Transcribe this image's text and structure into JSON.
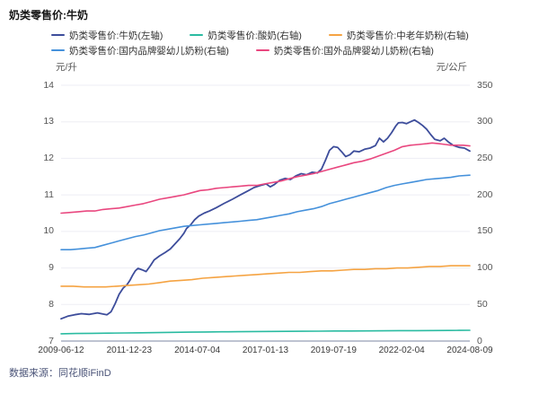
{
  "window": {
    "title": "奶类零售价:牛奶"
  },
  "footer": {
    "source": "数据来源：同花顺iFinD"
  },
  "colors": {
    "background": "#ffffff",
    "gridline": "#ededf4",
    "axis_line": "#a9afc2",
    "title_text": "#151515",
    "legend_text": "#333333",
    "tick_text": "#555555",
    "xtick_text": "#3a3a3a",
    "footer_text": "#4b5478"
  },
  "chart_data": {
    "type": "line",
    "title": "奶类零售价:牛奶",
    "legend_position": "top",
    "grid": true,
    "x_domain_years": [
      2009.45,
      2024.6
    ],
    "x_tick_labels": [
      "2009-06-12",
      "2011-12-23",
      "2014-07-04",
      "2017-01-13",
      "2019-07-19",
      "2022-02-04",
      "2024-08-09"
    ],
    "axes": {
      "left": {
        "label": "元/升",
        "min": 7,
        "max": 14,
        "ticks": [
          14,
          13,
          12,
          11,
          10,
          9,
          8,
          7
        ]
      },
      "right": {
        "label": "元/公斤",
        "min": 0,
        "max": 350,
        "ticks": [
          350,
          300,
          250,
          200,
          150,
          100,
          50,
          0
        ]
      }
    },
    "legend_rows": [
      [
        0,
        1,
        2
      ],
      [
        3,
        4
      ]
    ],
    "series": [
      {
        "name": "奶类零售价:牛奶(左轴)",
        "axis": "left",
        "color": "#3d4d9b",
        "unit": "元/升",
        "points": [
          [
            2009.45,
            7.61
          ],
          [
            2009.7,
            7.68
          ],
          [
            2009.95,
            7.72
          ],
          [
            2010.2,
            7.75
          ],
          [
            2010.5,
            7.73
          ],
          [
            2010.8,
            7.77
          ],
          [
            2011.0,
            7.74
          ],
          [
            2011.15,
            7.72
          ],
          [
            2011.3,
            7.8
          ],
          [
            2011.45,
            8.02
          ],
          [
            2011.6,
            8.28
          ],
          [
            2011.75,
            8.45
          ],
          [
            2011.9,
            8.55
          ],
          [
            2012.0,
            8.66
          ],
          [
            2012.1,
            8.8
          ],
          [
            2012.2,
            8.92
          ],
          [
            2012.3,
            8.99
          ],
          [
            2012.45,
            8.95
          ],
          [
            2012.6,
            8.9
          ],
          [
            2012.75,
            9.05
          ],
          [
            2012.9,
            9.22
          ],
          [
            2013.1,
            9.33
          ],
          [
            2013.3,
            9.42
          ],
          [
            2013.5,
            9.52
          ],
          [
            2013.7,
            9.68
          ],
          [
            2013.85,
            9.8
          ],
          [
            2014.0,
            9.95
          ],
          [
            2014.1,
            10.08
          ],
          [
            2014.25,
            10.18
          ],
          [
            2014.4,
            10.32
          ],
          [
            2014.55,
            10.42
          ],
          [
            2014.75,
            10.5
          ],
          [
            2014.95,
            10.56
          ],
          [
            2015.2,
            10.65
          ],
          [
            2015.5,
            10.77
          ],
          [
            2015.8,
            10.88
          ],
          [
            2016.1,
            11.0
          ],
          [
            2016.4,
            11.12
          ],
          [
            2016.6,
            11.2
          ],
          [
            2016.8,
            11.25
          ],
          [
            2017.05,
            11.3
          ],
          [
            2017.2,
            11.22
          ],
          [
            2017.35,
            11.28
          ],
          [
            2017.55,
            11.4
          ],
          [
            2017.75,
            11.45
          ],
          [
            2017.95,
            11.42
          ],
          [
            2018.15,
            11.52
          ],
          [
            2018.35,
            11.58
          ],
          [
            2018.55,
            11.55
          ],
          [
            2018.75,
            11.62
          ],
          [
            2018.95,
            11.6
          ],
          [
            2019.1,
            11.7
          ],
          [
            2019.25,
            11.95
          ],
          [
            2019.4,
            12.22
          ],
          [
            2019.55,
            12.32
          ],
          [
            2019.7,
            12.3
          ],
          [
            2019.85,
            12.18
          ],
          [
            2020.0,
            12.05
          ],
          [
            2020.15,
            12.1
          ],
          [
            2020.3,
            12.2
          ],
          [
            2020.5,
            12.18
          ],
          [
            2020.7,
            12.25
          ],
          [
            2020.9,
            12.28
          ],
          [
            2021.1,
            12.35
          ],
          [
            2021.25,
            12.55
          ],
          [
            2021.4,
            12.45
          ],
          [
            2021.55,
            12.55
          ],
          [
            2021.7,
            12.7
          ],
          [
            2021.85,
            12.88
          ],
          [
            2021.95,
            12.97
          ],
          [
            2022.1,
            12.98
          ],
          [
            2022.25,
            12.95
          ],
          [
            2022.4,
            13.0
          ],
          [
            2022.55,
            13.05
          ],
          [
            2022.7,
            12.98
          ],
          [
            2022.85,
            12.9
          ],
          [
            2023.0,
            12.8
          ],
          [
            2023.15,
            12.65
          ],
          [
            2023.3,
            12.52
          ],
          [
            2023.5,
            12.48
          ],
          [
            2023.65,
            12.55
          ],
          [
            2023.8,
            12.45
          ],
          [
            2024.0,
            12.35
          ],
          [
            2024.2,
            12.3
          ],
          [
            2024.4,
            12.28
          ],
          [
            2024.6,
            12.2
          ]
        ]
      },
      {
        "name": "奶类零售价:酸奶(右轴)",
        "axis": "right",
        "color": "#2abba1",
        "unit": "元/公斤",
        "points": [
          [
            2009.45,
            10.0
          ],
          [
            2010.0,
            10.3
          ],
          [
            2010.6,
            10.6
          ],
          [
            2011.2,
            10.8
          ],
          [
            2011.8,
            11.0
          ],
          [
            2012.4,
            11.3
          ],
          [
            2013.0,
            11.6
          ],
          [
            2013.6,
            11.9
          ],
          [
            2014.2,
            12.1
          ],
          [
            2014.8,
            12.4
          ],
          [
            2015.4,
            12.6
          ],
          [
            2016.0,
            12.8
          ],
          [
            2016.6,
            13.0
          ],
          [
            2017.2,
            13.1
          ],
          [
            2017.8,
            13.3
          ],
          [
            2018.4,
            13.4
          ],
          [
            2019.0,
            13.5
          ],
          [
            2019.6,
            13.7
          ],
          [
            2020.2,
            13.8
          ],
          [
            2020.8,
            13.9
          ],
          [
            2021.4,
            14.0
          ],
          [
            2022.0,
            14.2
          ],
          [
            2022.6,
            14.3
          ],
          [
            2023.2,
            14.4
          ],
          [
            2023.8,
            14.5
          ],
          [
            2024.2,
            14.6
          ],
          [
            2024.6,
            14.7
          ]
        ]
      },
      {
        "name": "奶类零售价:中老年奶粉(右轴)",
        "axis": "right",
        "color": "#f5a342",
        "unit": "元/公斤",
        "points": [
          [
            2009.45,
            75
          ],
          [
            2009.9,
            75
          ],
          [
            2010.3,
            74
          ],
          [
            2010.7,
            74
          ],
          [
            2011.1,
            74
          ],
          [
            2011.5,
            75
          ],
          [
            2011.9,
            76
          ],
          [
            2012.3,
            77
          ],
          [
            2012.7,
            78
          ],
          [
            2013.1,
            80
          ],
          [
            2013.5,
            82
          ],
          [
            2013.9,
            83
          ],
          [
            2014.3,
            84
          ],
          [
            2014.7,
            86
          ],
          [
            2015.1,
            87
          ],
          [
            2015.5,
            88
          ],
          [
            2015.9,
            89
          ],
          [
            2016.3,
            90
          ],
          [
            2016.7,
            91
          ],
          [
            2017.1,
            92
          ],
          [
            2017.5,
            93
          ],
          [
            2017.9,
            94
          ],
          [
            2018.3,
            94
          ],
          [
            2018.7,
            95
          ],
          [
            2019.1,
            96
          ],
          [
            2019.5,
            96
          ],
          [
            2019.9,
            97
          ],
          [
            2020.3,
            98
          ],
          [
            2020.7,
            98
          ],
          [
            2021.1,
            99
          ],
          [
            2021.5,
            99
          ],
          [
            2021.9,
            100
          ],
          [
            2022.3,
            100
          ],
          [
            2022.7,
            101
          ],
          [
            2023.1,
            102
          ],
          [
            2023.5,
            102
          ],
          [
            2023.9,
            103
          ],
          [
            2024.3,
            103
          ],
          [
            2024.6,
            103
          ]
        ]
      },
      {
        "name": "奶类零售价:国内品牌婴幼儿奶粉(右轴)",
        "axis": "right",
        "color": "#4591db",
        "unit": "元/公斤",
        "points": [
          [
            2009.45,
            125
          ],
          [
            2009.8,
            125
          ],
          [
            2010.1,
            126
          ],
          [
            2010.4,
            127
          ],
          [
            2010.7,
            128
          ],
          [
            2011.0,
            131
          ],
          [
            2011.3,
            134
          ],
          [
            2011.6,
            137
          ],
          [
            2011.9,
            140
          ],
          [
            2012.2,
            143
          ],
          [
            2012.5,
            145
          ],
          [
            2012.8,
            148
          ],
          [
            2013.1,
            151
          ],
          [
            2013.4,
            153
          ],
          [
            2013.7,
            155
          ],
          [
            2014.0,
            157
          ],
          [
            2014.3,
            158
          ],
          [
            2014.6,
            159
          ],
          [
            2014.9,
            160
          ],
          [
            2015.2,
            161
          ],
          [
            2015.5,
            162
          ],
          [
            2015.8,
            163
          ],
          [
            2016.1,
            164
          ],
          [
            2016.4,
            165
          ],
          [
            2016.7,
            166
          ],
          [
            2017.0,
            168
          ],
          [
            2017.3,
            170
          ],
          [
            2017.6,
            172
          ],
          [
            2017.9,
            174
          ],
          [
            2018.2,
            177
          ],
          [
            2018.5,
            179
          ],
          [
            2018.8,
            181
          ],
          [
            2019.1,
            184
          ],
          [
            2019.4,
            188
          ],
          [
            2019.7,
            191
          ],
          [
            2020.0,
            194
          ],
          [
            2020.3,
            197
          ],
          [
            2020.6,
            200
          ],
          [
            2020.9,
            203
          ],
          [
            2021.2,
            206
          ],
          [
            2021.5,
            210
          ],
          [
            2021.8,
            213
          ],
          [
            2022.1,
            215
          ],
          [
            2022.4,
            217
          ],
          [
            2022.7,
            219
          ],
          [
            2023.0,
            221
          ],
          [
            2023.3,
            222
          ],
          [
            2023.6,
            223
          ],
          [
            2023.9,
            224
          ],
          [
            2024.2,
            226
          ],
          [
            2024.6,
            227
          ]
        ]
      },
      {
        "name": "奶类零售价:国外品牌婴幼儿奶粉(右轴)",
        "axis": "right",
        "color": "#e9477f",
        "unit": "元/公斤",
        "points": [
          [
            2009.45,
            175
          ],
          [
            2009.8,
            176
          ],
          [
            2010.1,
            177
          ],
          [
            2010.4,
            178
          ],
          [
            2010.7,
            178
          ],
          [
            2011.0,
            180
          ],
          [
            2011.3,
            181
          ],
          [
            2011.6,
            182
          ],
          [
            2011.9,
            184
          ],
          [
            2012.2,
            186
          ],
          [
            2012.5,
            188
          ],
          [
            2012.8,
            191
          ],
          [
            2013.1,
            194
          ],
          [
            2013.4,
            196
          ],
          [
            2013.7,
            198
          ],
          [
            2014.0,
            200
          ],
          [
            2014.3,
            203
          ],
          [
            2014.6,
            206
          ],
          [
            2014.9,
            207
          ],
          [
            2015.2,
            209
          ],
          [
            2015.5,
            210
          ],
          [
            2015.8,
            211
          ],
          [
            2016.1,
            212
          ],
          [
            2016.4,
            213
          ],
          [
            2016.7,
            213
          ],
          [
            2017.0,
            215
          ],
          [
            2017.3,
            217
          ],
          [
            2017.6,
            219
          ],
          [
            2017.9,
            222
          ],
          [
            2018.2,
            225
          ],
          [
            2018.5,
            227
          ],
          [
            2018.8,
            229
          ],
          [
            2019.1,
            232
          ],
          [
            2019.4,
            235
          ],
          [
            2019.7,
            238
          ],
          [
            2020.0,
            241
          ],
          [
            2020.3,
            244
          ],
          [
            2020.6,
            246
          ],
          [
            2020.9,
            249
          ],
          [
            2021.2,
            253
          ],
          [
            2021.5,
            257
          ],
          [
            2021.8,
            261
          ],
          [
            2022.1,
            266
          ],
          [
            2022.4,
            268
          ],
          [
            2022.7,
            269
          ],
          [
            2023.0,
            270
          ],
          [
            2023.2,
            271
          ],
          [
            2023.45,
            270
          ],
          [
            2023.7,
            269
          ],
          [
            2023.9,
            268
          ],
          [
            2024.1,
            268
          ],
          [
            2024.35,
            268
          ],
          [
            2024.6,
            267
          ]
        ]
      }
    ]
  }
}
